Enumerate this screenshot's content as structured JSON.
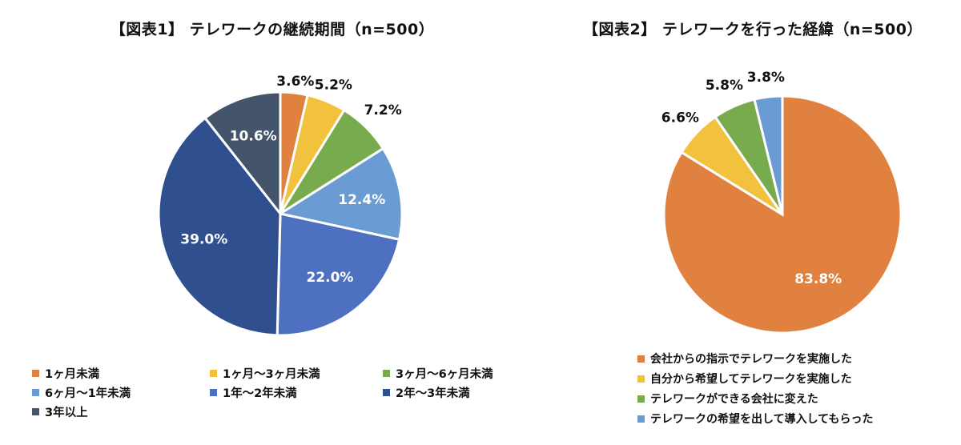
{
  "chart_data": [
    {
      "type": "pie",
      "title": "【図表1】 テレワークの継続期間（n=500）",
      "categories": [
        "1ヶ月未満",
        "1ヶ月～3ヶ月未満",
        "3ヶ月～6ヶ月未満",
        "6ヶ月～1年未満",
        "1年～2年未満",
        "2年～3年未満",
        "3年以上"
      ],
      "values": [
        3.6,
        5.2,
        7.2,
        12.4,
        22.0,
        39.0,
        10.6
      ],
      "labels": [
        "3.6%",
        "5.2%",
        "7.2%",
        "12.4%",
        "22.0%",
        "39.0%",
        "10.6%"
      ],
      "colors": [
        "#E0813F",
        "#F2C13E",
        "#77AB4D",
        "#6A9BD2",
        "#4D70C1",
        "#2F4F8F",
        "#44546A"
      ],
      "legend_position": "bottom"
    },
    {
      "type": "pie",
      "title": "【図表2】 テレワークを行った経緯（n=500）",
      "categories": [
        "会社からの指示でテレワークを実施した",
        "自分から希望してテレワークを実施した",
        "テレワークができる会社に変えた",
        "テレワークの希望を出して導入してもらった"
      ],
      "values": [
        83.8,
        6.6,
        5.8,
        3.8
      ],
      "labels": [
        "83.8%",
        "6.6%",
        "5.8%",
        "3.8%"
      ],
      "colors": [
        "#E0813F",
        "#F2C13E",
        "#77AB4D",
        "#6A9BD2"
      ],
      "legend_position": "bottom"
    }
  ]
}
